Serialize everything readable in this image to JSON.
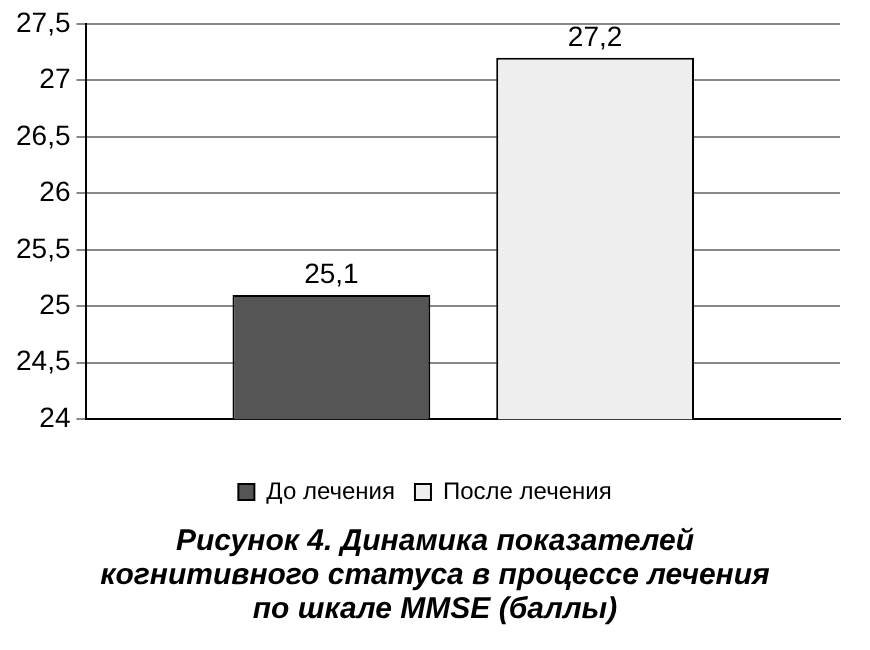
{
  "chart_data": {
    "type": "bar",
    "title": "Рисунок 4. Динамика показателей когнитивного статуса в процессе лечения по шкале MMSE (баллы)",
    "categories": [
      null
    ],
    "series": [
      {
        "name": "До лечения",
        "color": "#555555",
        "values": [
          25.1
        ],
        "value_labels": [
          "25,1"
        ]
      },
      {
        "name": "После лечения",
        "color": "#eeeeee",
        "values": [
          27.2
        ],
        "value_labels": [
          "27,2"
        ]
      }
    ],
    "ylim": [
      24,
      27.5
    ],
    "yticks": [
      24,
      {
        "value": 24.5,
        "label": "24,5"
      },
      25,
      {
        "value": 25.5,
        "label": "25,5"
      },
      26,
      {
        "value": 26.5,
        "label": "26,5"
      },
      27,
      {
        "value": 27.5,
        "label": "27,5"
      }
    ],
    "grid": "y",
    "legend": "bottom"
  }
}
